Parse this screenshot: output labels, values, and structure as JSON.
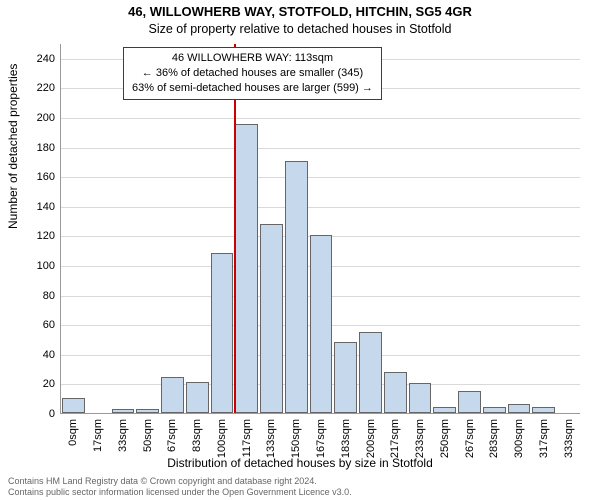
{
  "title": "46, WILLOWHERB WAY, STOTFOLD, HITCHIN, SG5 4GR",
  "subtitle": "Size of property relative to detached houses in Stotfold",
  "ylabel": "Number of detached properties",
  "xlabel": "Distribution of detached houses by size in Stotfold",
  "chart": {
    "type": "histogram",
    "ylim": [
      0,
      250
    ],
    "ytick_step": 20,
    "background_color": "#ffffff",
    "grid_color": "#d9d9d9",
    "axis_color": "#999999",
    "bar_fill": "#c6d9ec",
    "bar_border": "#666666",
    "marker_color": "#cc0000",
    "marker_at_index": 7,
    "label_fontsize": 11,
    "categories": [
      "0sqm",
      "17sqm",
      "33sqm",
      "50sqm",
      "67sqm",
      "83sqm",
      "100sqm",
      "117sqm",
      "133sqm",
      "150sqm",
      "167sqm",
      "183sqm",
      "200sqm",
      "217sqm",
      "233sqm",
      "250sqm",
      "267sqm",
      "283sqm",
      "300sqm",
      "317sqm",
      "333sqm"
    ],
    "values": [
      10,
      0,
      3,
      3,
      24,
      21,
      108,
      195,
      128,
      170,
      120,
      48,
      55,
      28,
      20,
      4,
      15,
      4,
      6,
      4,
      0
    ]
  },
  "annotation": {
    "line1": "46 WILLOWHERB WAY: 113sqm",
    "line2": "← 36% of detached houses are smaller (345)",
    "line3": "63% of semi-detached houses are larger (599) →"
  },
  "footer": {
    "line1": "Contains HM Land Registry data © Crown copyright and database right 2024.",
    "line2": "Contains public sector information licensed under the Open Government Licence v3.0."
  }
}
